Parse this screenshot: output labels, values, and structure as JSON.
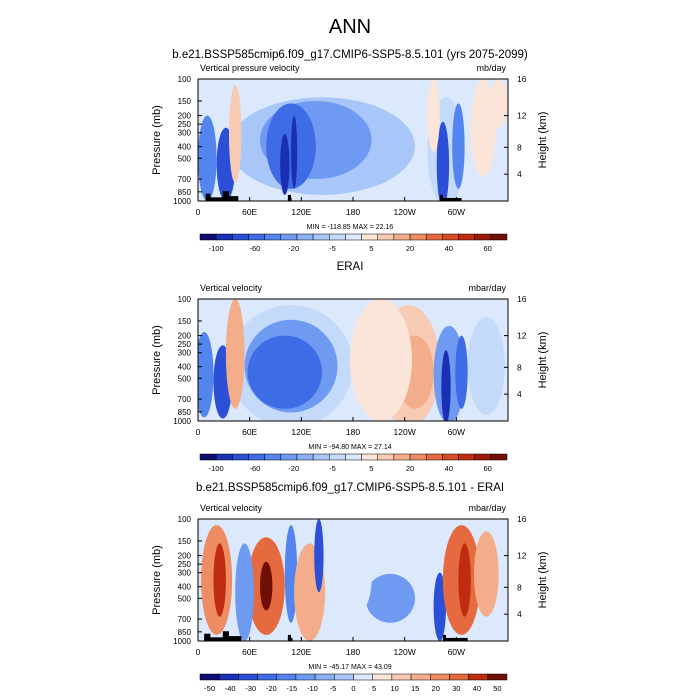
{
  "figure_title": "ANN",
  "chart_data": [
    {
      "type": "heatmap",
      "title": "b.e21.BSSP585cmip6.f09_g17.CMIP6-SSP5-8.5.101 (yrs 2075-2099)",
      "variable_label": "Vertical pressure velocity",
      "units_label": "mb/day",
      "ylabel": "Pressure (mb)",
      "y2label": "Height (km)",
      "x_ticks": [
        "0",
        "60E",
        "120E",
        "180",
        "120W",
        "60W"
      ],
      "y_ticks": [
        "100",
        "150",
        "200",
        "250",
        "300",
        "400",
        "500",
        "700",
        "850",
        "1000"
      ],
      "y2_ticks": [
        "4",
        "8",
        "12",
        "16"
      ],
      "stats": "MIN = -118.85  MAX = 22.16",
      "colorbar_labels": [
        "-100",
        "-60",
        "-20",
        "-5",
        "5",
        "20",
        "40",
        "60"
      ],
      "colorbar_colors": [
        "#0d0d73",
        "#1a2fb4",
        "#2b4fd6",
        "#3e6ce6",
        "#5484ee",
        "#6f9af2",
        "#8cb0f5",
        "#a9c6f8",
        "#c4dafb",
        "#dce9fd",
        "#fbe5d8",
        "#f7cbb3",
        "#f3ad8a",
        "#ee8c63",
        "#e66a3f",
        "#d84a22",
        "#c02c10",
        "#9c1a08",
        "#701004"
      ],
      "min": -118.85,
      "max": 22.16
    },
    {
      "type": "heatmap",
      "title": "ERAI",
      "variable_label": "Vertical velocity",
      "units_label": "mbar/day",
      "ylabel": "Pressure (mb)",
      "y2label": "Height (km)",
      "x_ticks": [
        "0",
        "60E",
        "120E",
        "180",
        "120W",
        "60W"
      ],
      "y_ticks": [
        "100",
        "150",
        "200",
        "250",
        "300",
        "400",
        "500",
        "700",
        "850",
        "1000"
      ],
      "y2_ticks": [
        "4",
        "8",
        "12",
        "16"
      ],
      "stats": "MIN = -94.80  MAX = 27.14",
      "colorbar_labels": [
        "-100",
        "-60",
        "-20",
        "-5",
        "5",
        "20",
        "40",
        "60"
      ],
      "colorbar_colors": [
        "#0d0d73",
        "#1a2fb4",
        "#2b4fd6",
        "#3e6ce6",
        "#5484ee",
        "#6f9af2",
        "#8cb0f5",
        "#a9c6f8",
        "#c4dafb",
        "#dce9fd",
        "#fbe5d8",
        "#f7cbb3",
        "#f3ad8a",
        "#ee8c63",
        "#e66a3f",
        "#d84a22",
        "#c02c10",
        "#9c1a08",
        "#701004"
      ],
      "min": -94.8,
      "max": 27.14
    },
    {
      "type": "heatmap",
      "title": "b.e21.BSSP585cmip6.f09_g17.CMIP6-SSP5-8.5.101 - ERAI",
      "variable_label": "Vertical velocity",
      "units_label": "mbar/day",
      "ylabel": "Pressure (mb)",
      "y2label": "Height (km)",
      "x_ticks": [
        "0",
        "60E",
        "120E",
        "180",
        "120W",
        "60W"
      ],
      "y_ticks": [
        "100",
        "150",
        "200",
        "250",
        "300",
        "400",
        "500",
        "700",
        "850",
        "1000"
      ],
      "y2_ticks": [
        "4",
        "8",
        "12",
        "16"
      ],
      "stats": "MIN = -45.17  MAX = 43.09",
      "colorbar_labels": [
        "-50",
        "-40",
        "-30",
        "-20",
        "-15",
        "-10",
        "-5",
        "0",
        "5",
        "10",
        "15",
        "20",
        "30",
        "40",
        "50"
      ],
      "colorbar_colors": [
        "#0d0d73",
        "#1a2fb4",
        "#2b4fd6",
        "#3e6ce6",
        "#5484ee",
        "#6f9af2",
        "#8cb0f5",
        "#a9c6f8",
        "#dce9fd",
        "#fbe5d8",
        "#f7cbb3",
        "#f3ad8a",
        "#ee8c63",
        "#e66a3f",
        "#c02c10",
        "#701004"
      ],
      "min": -45.17,
      "max": 43.09
    }
  ]
}
